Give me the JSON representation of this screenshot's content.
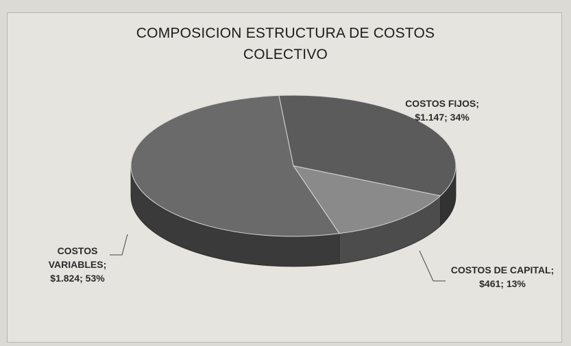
{
  "chart_data": {
    "type": "pie",
    "title_lines": [
      "COMPOSICION ESTRUCTURA DE COSTOS",
      "COLECTIVO"
    ],
    "slices": [
      {
        "name": "COSTOS FIJOS",
        "value": 1147,
        "percent": 34,
        "label_lines": [
          "COSTOS FIJOS;",
          "$1.147; 34%"
        ],
        "color": "#5b5b5b"
      },
      {
        "name": "COSTOS DE CAPITAL",
        "value": 461,
        "percent": 13,
        "label_lines": [
          "COSTOS DE CAPITAL;",
          "$461; 13%"
        ],
        "color": "#8a8a8a"
      },
      {
        "name": "COSTOS VARIABLES",
        "value": 1824,
        "percent": 53,
        "label_lines": [
          "COSTOS",
          "VARIABLES;",
          "$1.824; 53%"
        ],
        "color": "#6a6a6a"
      }
    ],
    "style": "3d-pie",
    "legend": "none"
  }
}
